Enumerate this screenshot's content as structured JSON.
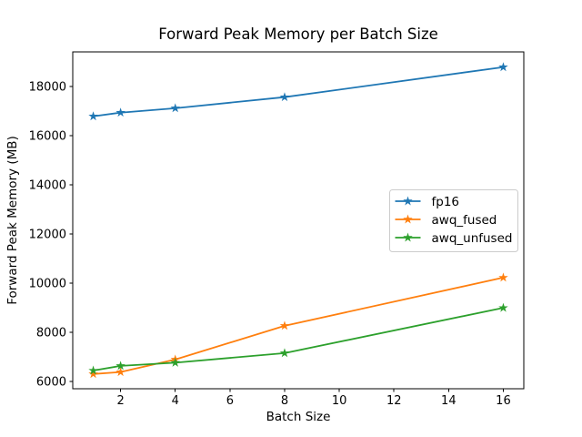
{
  "chart_data": {
    "type": "line",
    "title": "Forward Peak Memory per Batch Size",
    "xlabel": "Batch Size",
    "ylabel": "Forward Peak Memory (MB)",
    "x": [
      1,
      2,
      4,
      8,
      16
    ],
    "series": [
      {
        "name": "fp16",
        "color": "#1f77b4",
        "marker": "star",
        "values": [
          16780,
          16930,
          17110,
          17560,
          18780
        ]
      },
      {
        "name": "awq_fused",
        "color": "#ff7f0e",
        "marker": "star",
        "values": [
          6300,
          6380,
          6890,
          8260,
          10220
        ]
      },
      {
        "name": "awq_unfused",
        "color": "#2ca02c",
        "marker": "star",
        "values": [
          6440,
          6630,
          6760,
          7150,
          8990
        ]
      }
    ],
    "xticks": [
      2,
      4,
      6,
      8,
      10,
      12,
      14,
      16
    ],
    "yticks": [
      6000,
      8000,
      10000,
      12000,
      14000,
      16000,
      18000
    ],
    "xlim": [
      0.25,
      16.75
    ],
    "ylim": [
      5700,
      19400
    ],
    "grid": false,
    "legend_position": "center right",
    "background_color": "#ffffff",
    "spine_color": "#000000",
    "legend_border_color": "#cccccc"
  }
}
